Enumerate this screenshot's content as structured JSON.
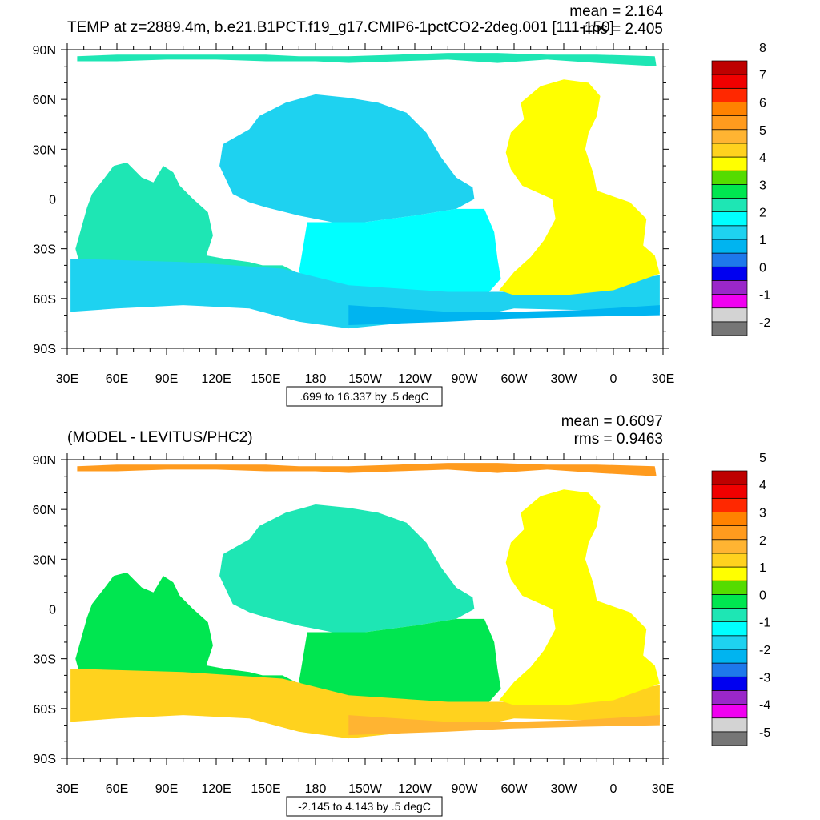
{
  "colors": {
    "land": "#ffffff",
    "frame": "#000000",
    "contour": "#000000"
  },
  "palette_top": [
    "#767676",
    "#d3d3d3",
    "#f000f0",
    "#9a27c9",
    "#0000f0",
    "#1e78eb",
    "#00b4f0",
    "#1ed2f0",
    "#00ffff",
    "#1ee6b4",
    "#00e650",
    "#55dc00",
    "#ffff00",
    "#ffd21e",
    "#ffb432",
    "#ff9b1e",
    "#ff8200",
    "#ff2800",
    "#f00000",
    "#be0000"
  ],
  "palette_bottom": [
    "#767676",
    "#d3d3d3",
    "#f000f0",
    "#9a27c9",
    "#0000f0",
    "#1e78eb",
    "#00b4f0",
    "#1ed2f0",
    "#00ffff",
    "#1ee6b4",
    "#00e650",
    "#55dc00",
    "#ffff00",
    "#ffd21e",
    "#ffb432",
    "#ff9b1e",
    "#ff8200",
    "#ff2800",
    "#f00000",
    "#be0000"
  ],
  "chart_data": [
    {
      "type": "heatmap",
      "title": "TEMP at z=2889.4m, b.e21.B1PCT.f19_g17.CMIP6-1pctCO2-2deg.001 [111-150]",
      "stats": [
        "mean = 2.164",
        "rms = 2.405"
      ],
      "xtick_labels": [
        "30E",
        "60E",
        "90E",
        "120E",
        "150E",
        "180",
        "150W",
        "120W",
        "90W",
        "60W",
        "30W",
        "0",
        "30E"
      ],
      "ytick_labels": [
        "90N",
        "60N",
        "30N",
        "0",
        "30S",
        "60S",
        "90S"
      ],
      "xlim": [
        30,
        390
      ],
      "ylim": [
        -90,
        90
      ],
      "colorbar_labels": [
        "-2",
        "-1",
        "0",
        "1",
        "2",
        "3",
        "4",
        "5",
        "6",
        "7",
        "8"
      ],
      "colorbar_range": [
        -2.5,
        8.5
      ],
      "colorbar_step": 0.5,
      "info_box": ".699 to 16.337 by .5 degC",
      "regions": [
        {
          "name": "arctic",
          "value": 2.2
        },
        {
          "name": "north-pacific",
          "value": 1.3
        },
        {
          "name": "south-pacific",
          "value": 1.8
        },
        {
          "name": "indian-ocean",
          "value": 2.1
        },
        {
          "name": "southern-ocean",
          "value": 1.4
        },
        {
          "name": "atlantic",
          "value": 3.8
        },
        {
          "name": "antarctic-shelf",
          "value": 0.9
        }
      ]
    },
    {
      "type": "heatmap",
      "title": "(MODEL - LEVITUS/PHC2)",
      "stats": [
        "mean = 0.6097",
        "rms = 0.9463"
      ],
      "xtick_labels": [
        "30E",
        "60E",
        "90E",
        "120E",
        "150E",
        "180",
        "150W",
        "120W",
        "90W",
        "60W",
        "30W",
        "0",
        "30E"
      ],
      "ytick_labels": [
        "90N",
        "60N",
        "30N",
        "0",
        "30S",
        "60S",
        "90S"
      ],
      "xlim": [
        30,
        390
      ],
      "ylim": [
        -90,
        90
      ],
      "colorbar_labels": [
        "-5",
        "-4",
        "-3",
        "-2",
        "-1",
        "0",
        "1",
        "2",
        "3",
        "4",
        "5"
      ],
      "colorbar_range": [
        -5.25,
        5.25
      ],
      "colorbar_step": 0.5,
      "info_box": "-2.145 to 4.143 by .5 degC",
      "regions": [
        {
          "name": "arctic",
          "value": 2.7
        },
        {
          "name": "north-pacific",
          "value": -0.6
        },
        {
          "name": "south-pacific",
          "value": 0.2
        },
        {
          "name": "indian-ocean",
          "value": 0.2
        },
        {
          "name": "southern-ocean",
          "value": 1.6
        },
        {
          "name": "atlantic",
          "value": 1.1
        },
        {
          "name": "antarctic-shelf",
          "value": 1.9
        }
      ]
    }
  ]
}
